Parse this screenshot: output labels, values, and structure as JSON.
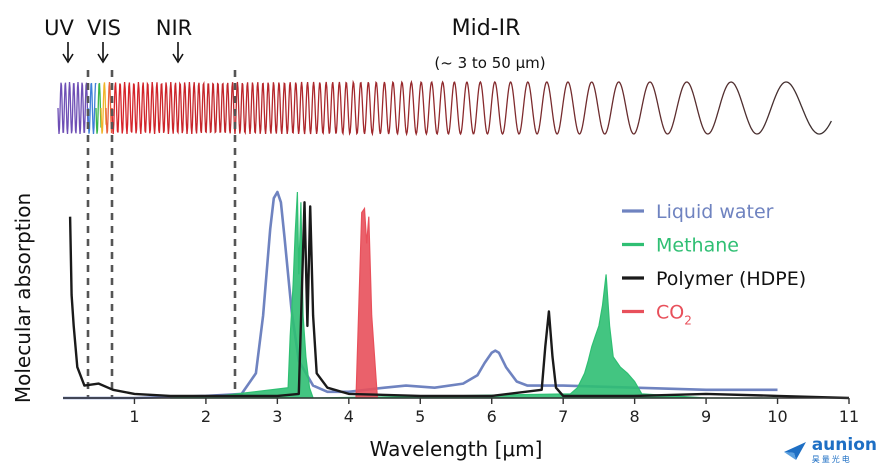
{
  "chart_data": {
    "type": "line",
    "title": "",
    "xlabel": "Wavelength [μm]",
    "ylabel": "Molecular absorption",
    "xlim": [
      0,
      11
    ],
    "ylim": [
      0,
      1
    ],
    "xticks": [
      1,
      2,
      3,
      4,
      5,
      6,
      7,
      8,
      9,
      10,
      11
    ],
    "grid": false,
    "legend_position": "right",
    "regions": [
      {
        "label": "UV",
        "marker_x": 0.1
      },
      {
        "label": "VIS",
        "marker_x": 0.55
      },
      {
        "label": "NIR",
        "marker_x": 1.6
      },
      {
        "label": "Mid-IR",
        "note": "(~ 3 to 50 μm)"
      }
    ],
    "dividers_x": [
      0.4,
      0.75,
      2.5
    ],
    "series": [
      {
        "name": "Liquid water",
        "color": "#6f83c0",
        "x": [
          0,
          1,
          2,
          2.5,
          2.7,
          2.8,
          2.9,
          2.95,
          3.0,
          3.05,
          3.1,
          3.2,
          3.3,
          3.5,
          3.7,
          4.0,
          4.5,
          4.8,
          5.2,
          5.6,
          5.8,
          5.9,
          6.0,
          6.05,
          6.1,
          6.2,
          6.35,
          6.5,
          7.0,
          8.0,
          9.0,
          10.0
        ],
        "y": [
          0.0,
          0.0,
          0.01,
          0.02,
          0.12,
          0.4,
          0.82,
          0.97,
          1.0,
          0.95,
          0.78,
          0.42,
          0.18,
          0.06,
          0.03,
          0.03,
          0.05,
          0.06,
          0.05,
          0.07,
          0.11,
          0.17,
          0.22,
          0.23,
          0.22,
          0.15,
          0.08,
          0.06,
          0.06,
          0.05,
          0.04,
          0.04
        ]
      },
      {
        "name": "Methane",
        "color": "#2fbf73",
        "x": [
          1.5,
          2.2,
          3.15,
          3.18,
          3.22,
          3.25,
          3.28,
          3.3,
          3.33,
          3.36,
          3.4,
          3.45,
          3.5,
          7.1,
          7.2,
          7.3,
          7.35,
          7.4,
          7.45,
          7.5,
          7.55,
          7.6,
          7.65,
          7.7,
          7.8,
          7.9,
          8.0,
          8.1,
          9.0,
          10.0
        ],
        "y": [
          0.0,
          0.01,
          0.05,
          0.3,
          0.55,
          0.8,
          1.0,
          0.6,
          0.95,
          0.4,
          0.2,
          0.05,
          0.0,
          0.02,
          0.05,
          0.12,
          0.18,
          0.25,
          0.3,
          0.35,
          0.45,
          0.6,
          0.35,
          0.2,
          0.15,
          0.12,
          0.08,
          0.02,
          0.0,
          0.0
        ]
      },
      {
        "name": "Polymer (HDPE)",
        "color": "#1a1a1a",
        "x": [
          0.1,
          0.12,
          0.15,
          0.2,
          0.3,
          0.5,
          0.7,
          1.0,
          1.5,
          2.0,
          2.5,
          3.0,
          3.3,
          3.38,
          3.42,
          3.46,
          3.5,
          3.55,
          3.7,
          4.0,
          5.0,
          6.0,
          6.7,
          6.75,
          6.8,
          6.85,
          6.9,
          7.0,
          8.0,
          9.0,
          10.0,
          11.0
        ],
        "y": [
          0.88,
          0.5,
          0.35,
          0.15,
          0.06,
          0.07,
          0.04,
          0.02,
          0.01,
          0.01,
          0.01,
          0.01,
          0.02,
          0.95,
          0.35,
          0.93,
          0.4,
          0.12,
          0.05,
          0.02,
          0.01,
          0.01,
          0.04,
          0.25,
          0.42,
          0.2,
          0.05,
          0.01,
          0.01,
          0.02,
          0.01,
          0.0
        ]
      },
      {
        "name": "CO2",
        "name_main": "CO",
        "name_sub": "2",
        "color": "#e8505b",
        "x": [
          4.1,
          4.18,
          4.22,
          4.25,
          4.28,
          4.32,
          4.4
        ],
        "y": [
          0.0,
          0.9,
          0.92,
          0.75,
          0.88,
          0.4,
          0.0
        ]
      }
    ]
  }
}
